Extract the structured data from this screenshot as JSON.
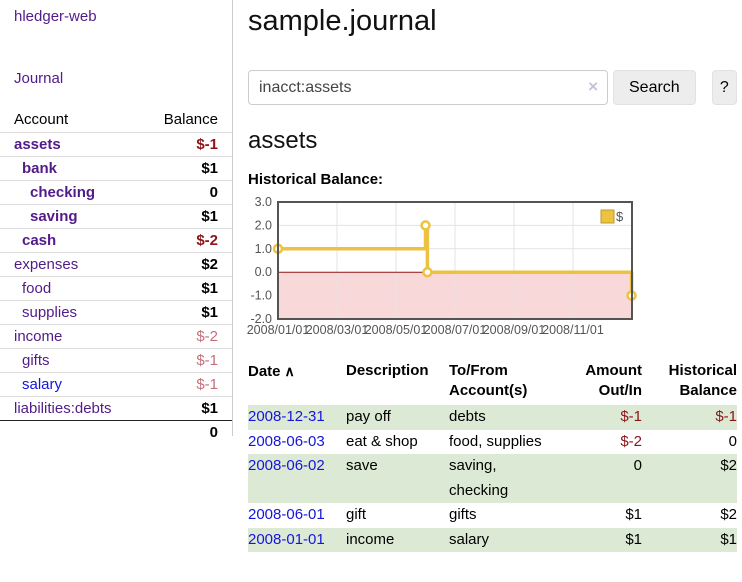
{
  "colors": {
    "visited_link_purple": "#521b8a",
    "link_blue": "#1515dd",
    "negative_strong": "#8c1419",
    "negative_soft": "#c3707d",
    "row_stripe_green": "#dcead5",
    "chart_line_yellow": "#edc240",
    "chart_border_gray": "#545454",
    "chart_negative_region": "#f8d8d8",
    "chart_zero_line": "#961414"
  },
  "sidebar": {
    "app_title": "hledger-web",
    "journal_link": "Journal",
    "accounts": {
      "header": {
        "account": "Account",
        "balance": "Balance"
      },
      "rows": [
        {
          "name": "assets",
          "balance": "$-1",
          "depth": 1,
          "match": true,
          "link": "visited",
          "neg": "strong"
        },
        {
          "name": "bank",
          "balance": "$1",
          "depth": 2,
          "match": true,
          "link": "visited",
          "neg": null
        },
        {
          "name": "checking",
          "balance": "0",
          "depth": 3,
          "match": true,
          "link": "visited",
          "neg": null
        },
        {
          "name": "saving",
          "balance": "$1",
          "depth": 3,
          "match": true,
          "link": "visited",
          "neg": null
        },
        {
          "name": "cash",
          "balance": "$-2",
          "depth": 2,
          "match": true,
          "link": "visited",
          "neg": "strong"
        },
        {
          "name": "expenses",
          "balance": "$2",
          "depth": 1,
          "match": false,
          "link": "visited",
          "neg": null
        },
        {
          "name": "food",
          "balance": "$1",
          "depth": 2,
          "match": false,
          "link": "visited",
          "neg": null
        },
        {
          "name": "supplies",
          "balance": "$1",
          "depth": 2,
          "match": false,
          "link": "visited",
          "neg": null
        },
        {
          "name": "income",
          "balance": "$-2",
          "depth": 1,
          "match": false,
          "link": "visited",
          "neg": "soft"
        },
        {
          "name": "gifts",
          "balance": "$-1",
          "depth": 2,
          "match": false,
          "link": "visited",
          "neg": "soft"
        },
        {
          "name": "salary",
          "balance": "$-1",
          "depth": 2,
          "match": false,
          "link": "unvisited",
          "neg": "soft"
        },
        {
          "name": "liabilities:debts",
          "balance": "$1",
          "depth": 1,
          "match": false,
          "link": "visited",
          "neg": null
        }
      ],
      "total": "0"
    }
  },
  "main": {
    "title": "sample.journal",
    "search": {
      "value": "inacct:assets",
      "clear_icon": "×",
      "search_button": "Search",
      "help_button": "?"
    },
    "account_heading": "assets",
    "chart_title": "Historical Balance:",
    "register": {
      "headers": {
        "date": "Date",
        "sort_icon": "∧",
        "description": "Description",
        "accounts": "To/From Account(s)",
        "amount": "Amount Out/In",
        "balance": "Historical Balance"
      },
      "rows": [
        {
          "date": "2008-12-31",
          "description": "pay off",
          "accounts": "debts",
          "amount": "$-1",
          "balance": "$-1",
          "amount_negative": true,
          "balance_negative": true
        },
        {
          "date": "2008-06-03",
          "description": "eat & shop",
          "accounts": "food, supplies",
          "amount": "$-2",
          "balance": "0",
          "amount_negative": true,
          "balance_negative": false
        },
        {
          "date": "2008-06-02",
          "description": "save",
          "accounts": "saving, checking",
          "amount": "0",
          "balance": "$2",
          "amount_negative": false,
          "balance_negative": false
        },
        {
          "date": "2008-06-01",
          "description": "gift",
          "accounts": "gifts",
          "amount": "$1",
          "balance": "$2",
          "amount_negative": false,
          "balance_negative": false
        },
        {
          "date": "2008-01-01",
          "description": "income",
          "accounts": "salary",
          "amount": "$1",
          "balance": "$1",
          "amount_negative": false,
          "balance_negative": false
        }
      ]
    }
  },
  "chart_data": {
    "type": "line",
    "step": true,
    "title": "Historical Balance",
    "series": [
      {
        "name": "$",
        "color": "#edc240",
        "points": [
          [
            "2008-01-01",
            1
          ],
          [
            "2008-06-01",
            2
          ],
          [
            "2008-06-03",
            0
          ],
          [
            "2008-12-31",
            -1
          ]
        ]
      }
    ],
    "ylim": [
      -2,
      3
    ],
    "ytick_values": [
      3,
      2,
      1,
      0,
      -1,
      -2
    ],
    "yticks": [
      "3.0",
      "2.0",
      "1.0",
      "0.0",
      "-1.0",
      "-2.0"
    ],
    "xticks": [
      "2008/01/01",
      "2008/03/01",
      "2008/05/01",
      "2008/07/01",
      "2008/09/01",
      "2008/11/01"
    ],
    "xlim": [
      "2008-01-01",
      "2008-12-31"
    ],
    "grid": true,
    "legend_position": "top-right",
    "negative_region_color": "#f8d8d8",
    "zero_line_color": "#961414"
  }
}
